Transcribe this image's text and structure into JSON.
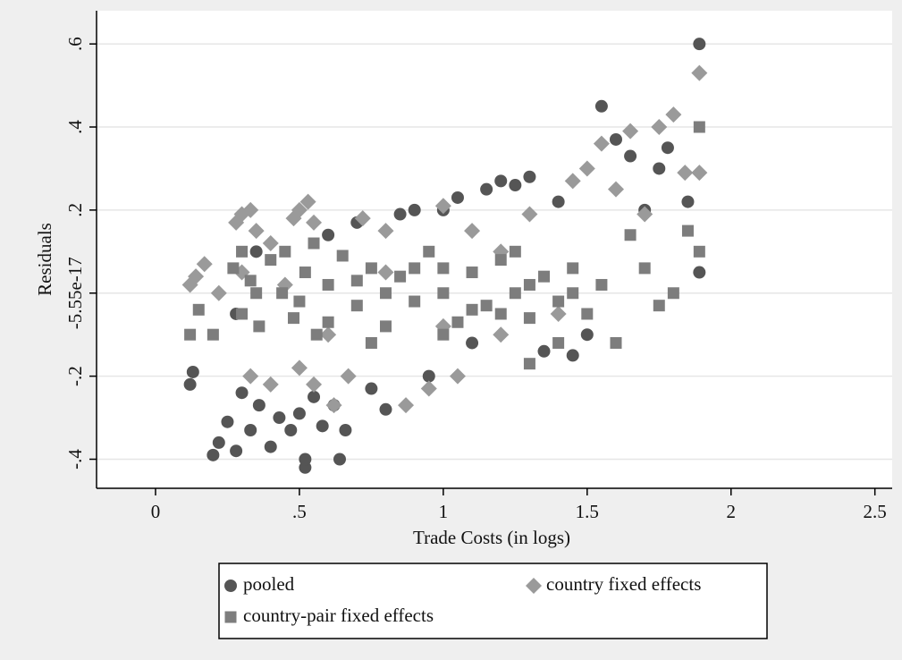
{
  "chart_data": {
    "type": "scatter",
    "x_label": "Trade Costs (in logs)",
    "y_label": "Residuals",
    "xlim": [
      -0.205,
      2.56
    ],
    "ylim": [
      -0.47,
      0.68
    ],
    "xticks": [
      0,
      {
        "value": 0.5,
        "label": ".5"
      },
      1,
      {
        "value": 1.5,
        "label": "1.5"
      },
      2,
      {
        "value": 2.5,
        "label": "2.5"
      }
    ],
    "yticks": [
      {
        "value": -0.4,
        "label": "-.4"
      },
      {
        "value": -0.2,
        "label": "-.2"
      },
      {
        "value": -5.55e-17,
        "label": "-5.55e-17"
      },
      {
        "value": 0.2,
        "label": ".2"
      },
      {
        "value": 0.4,
        "label": ".4"
      },
      {
        "value": 0.6,
        "label": ".6"
      }
    ],
    "grid": true,
    "series": [
      {
        "name": "pooled",
        "color": "#555555",
        "marker": "circle",
        "x": [
          0.12,
          0.13,
          0.2,
          0.22,
          0.25,
          0.28,
          0.3,
          0.33,
          0.36,
          0.4,
          0.43,
          0.47,
          0.5,
          0.52,
          0.52,
          0.55,
          0.58,
          0.62,
          0.64,
          0.66,
          0.7,
          0.75,
          0.8,
          0.85,
          0.9,
          0.95,
          1.0,
          1.05,
          1.1,
          1.15,
          1.2,
          1.25,
          1.3,
          1.35,
          1.4,
          1.45,
          1.5,
          1.55,
          1.6,
          1.65,
          1.7,
          1.75,
          1.78,
          1.85,
          1.89,
          1.89,
          0.28,
          0.35,
          0.6
        ],
        "values": [
          -0.22,
          -0.19,
          -0.39,
          -0.36,
          -0.31,
          -0.38,
          -0.24,
          -0.33,
          -0.27,
          -0.37,
          -0.3,
          -0.33,
          -0.29,
          -0.42,
          -0.4,
          -0.25,
          -0.32,
          -0.27,
          -0.4,
          -0.33,
          0.17,
          -0.23,
          -0.28,
          0.19,
          0.2,
          -0.2,
          0.2,
          0.23,
          -0.12,
          0.25,
          0.27,
          0.26,
          0.28,
          -0.14,
          0.22,
          -0.15,
          -0.1,
          0.45,
          0.37,
          0.33,
          0.2,
          0.3,
          0.35,
          0.22,
          0.6,
          0.05,
          -0.05,
          0.1,
          0.14
        ]
      },
      {
        "name": "country fixed effects",
        "color": "#9a9a9a",
        "marker": "diamond",
        "x": [
          0.12,
          0.14,
          0.17,
          0.22,
          0.28,
          0.3,
          0.33,
          0.35,
          0.4,
          0.48,
          0.5,
          0.53,
          0.55,
          0.33,
          0.4,
          0.5,
          0.55,
          0.62,
          0.67,
          0.72,
          0.8,
          0.87,
          0.95,
          1.0,
          1.05,
          1.1,
          1.2,
          1.3,
          1.4,
          1.45,
          1.5,
          1.55,
          1.6,
          1.65,
          1.7,
          1.75,
          1.8,
          1.84,
          1.89,
          1.89,
          0.8,
          1.2,
          0.6,
          1.0,
          0.3,
          0.45
        ],
        "values": [
          0.02,
          0.04,
          0.07,
          0.0,
          0.17,
          0.19,
          0.2,
          0.15,
          0.12,
          0.18,
          0.2,
          0.22,
          0.17,
          -0.2,
          -0.22,
          -0.18,
          -0.22,
          -0.27,
          -0.2,
          0.18,
          0.15,
          -0.27,
          -0.23,
          0.21,
          -0.2,
          0.15,
          -0.1,
          0.19,
          -0.05,
          0.27,
          0.3,
          0.36,
          0.25,
          0.39,
          0.19,
          0.4,
          0.43,
          0.29,
          0.53,
          0.29,
          0.05,
          0.1,
          -0.1,
          -0.08,
          0.05,
          0.02
        ]
      },
      {
        "name": "country-pair fixed effects",
        "color": "#7d7d7d",
        "marker": "square",
        "x": [
          0.12,
          0.15,
          0.2,
          0.27,
          0.3,
          0.33,
          0.36,
          0.4,
          0.44,
          0.48,
          0.52,
          0.56,
          0.6,
          0.65,
          0.7,
          0.75,
          0.8,
          0.85,
          0.9,
          0.95,
          1.0,
          1.05,
          1.1,
          1.15,
          1.2,
          1.25,
          1.3,
          1.35,
          1.4,
          1.45,
          1.5,
          1.55,
          1.6,
          1.65,
          1.7,
          1.75,
          1.8,
          1.85,
          1.89,
          1.89,
          1.3,
          1.4,
          0.35,
          0.5,
          0.7,
          0.9,
          1.1,
          1.3,
          0.45,
          0.6,
          0.8,
          1.0,
          1.2,
          1.45,
          0.3,
          0.55,
          0.75,
          1.0,
          1.25
        ],
        "values": [
          -0.1,
          -0.04,
          -0.1,
          0.06,
          -0.05,
          0.03,
          -0.08,
          0.08,
          0.0,
          -0.06,
          0.05,
          -0.1,
          0.02,
          0.09,
          -0.03,
          0.06,
          -0.08,
          0.04,
          -0.02,
          0.1,
          0.0,
          -0.07,
          0.05,
          -0.03,
          0.08,
          0.0,
          -0.06,
          0.04,
          -0.02,
          0.06,
          -0.05,
          0.02,
          -0.12,
          0.14,
          0.06,
          -0.03,
          0.0,
          0.15,
          0.1,
          0.4,
          -0.17,
          -0.12,
          0.0,
          -0.02,
          0.03,
          0.06,
          -0.04,
          0.02,
          0.1,
          -0.07,
          0.0,
          0.06,
          -0.05,
          0.0,
          0.1,
          0.12,
          -0.12,
          -0.1,
          0.1
        ]
      }
    ]
  }
}
